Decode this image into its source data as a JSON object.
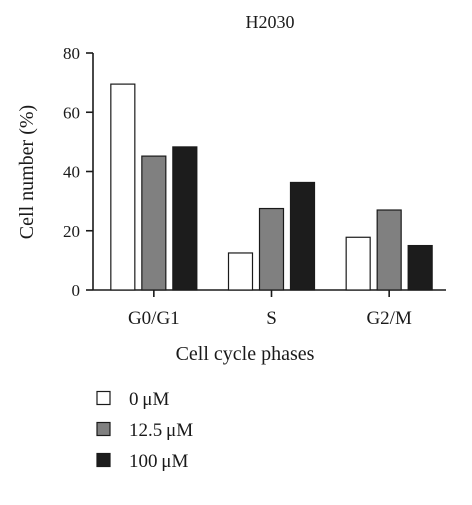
{
  "chart_data": {
    "type": "bar",
    "title": "H2030",
    "xlabel": "Cell cycle phases",
    "ylabel": "Cell number (%)",
    "ylim": [
      0,
      80
    ],
    "yticks": [
      0,
      20,
      40,
      60,
      80
    ],
    "categories": [
      "G0/G1",
      "S",
      "G2/M"
    ],
    "series": [
      {
        "name": "0 μM",
        "color": "#ffffff",
        "values": [
          69.5,
          12.5,
          17.8
        ]
      },
      {
        "name": "12.5 μM",
        "color": "#808080",
        "values": [
          45.2,
          27.5,
          27.0
        ]
      },
      {
        "name": "100 μM",
        "color": "#1c1c1c",
        "values": [
          48.3,
          36.3,
          15.0
        ]
      }
    ],
    "legend_position": "bottom-left",
    "grid": false
  }
}
